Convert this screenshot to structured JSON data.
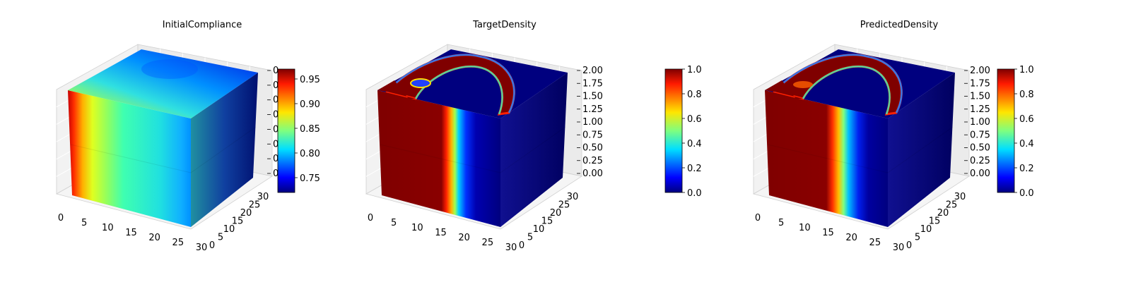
{
  "chart_data": [
    {
      "type": "heatmap",
      "title": "InitialCompliance",
      "x_ticks": [
        "0",
        "5",
        "10",
        "15",
        "20",
        "25",
        "30"
      ],
      "y_ticks": [
        "0",
        "5",
        "10",
        "15",
        "20",
        "25",
        "30"
      ],
      "z_ticks": [
        "0",
        "0",
        "0",
        "0",
        "0",
        "0",
        "0",
        "0"
      ],
      "colorbar": {
        "cmap": "jet",
        "min": 0.72,
        "max": 0.97,
        "ticks": [
          "0.75",
          "0.80",
          "0.85",
          "0.90",
          "0.95"
        ]
      },
      "description_values": {
        "front_face_left_value": 0.97,
        "front_face_right_value": 0.78,
        "side_face_value": 0.73
      }
    },
    {
      "type": "heatmap",
      "title": "TargetDensity",
      "x_ticks": [
        "0",
        "5",
        "10",
        "15",
        "20",
        "25",
        "30"
      ],
      "y_ticks": [
        "0",
        "5",
        "10",
        "15",
        "20",
        "25",
        "30"
      ],
      "z_ticks": [
        "0.00",
        "0.25",
        "0.50",
        "0.75",
        "1.00",
        "1.25",
        "1.50",
        "1.75",
        "2.00"
      ],
      "colorbar": {
        "cmap": "jet",
        "min": 0.0,
        "max": 1.0,
        "ticks": [
          "0.0",
          "0.2",
          "0.4",
          "0.6",
          "0.8",
          "1.0"
        ]
      }
    },
    {
      "type": "heatmap",
      "title": "PredictedDensity",
      "x_ticks": [
        "0",
        "5",
        "10",
        "15",
        "20",
        "25",
        "30"
      ],
      "y_ticks": [
        "0",
        "5",
        "10",
        "15",
        "20",
        "25",
        "30"
      ],
      "z_ticks": [
        "0.00",
        "0.25",
        "0.50",
        "0.75",
        "1.00",
        "1.25",
        "1.50",
        "1.75",
        "2.00"
      ],
      "colorbar": {
        "cmap": "jet",
        "min": 0.0,
        "max": 1.0,
        "ticks": [
          "0.0",
          "0.2",
          "0.4",
          "0.6",
          "0.8",
          "1.0"
        ]
      }
    }
  ]
}
